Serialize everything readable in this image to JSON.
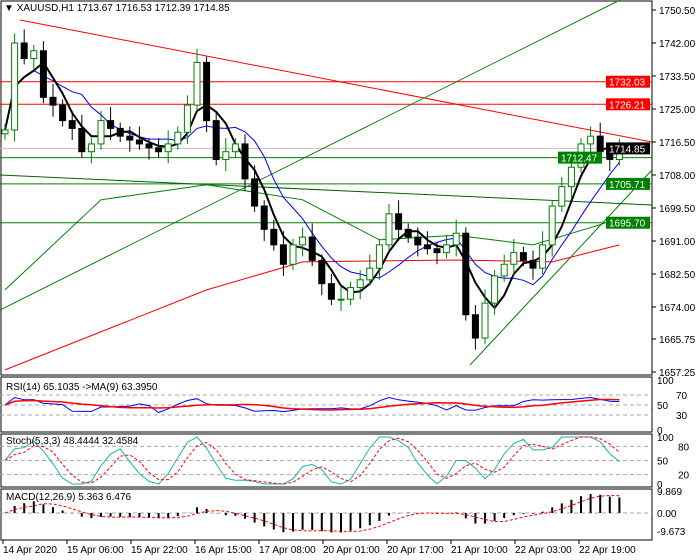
{
  "header": {
    "symbol": "XAUUSD,H1",
    "ohlc": "1713.67 1716.53 1712.39 1714.85"
  },
  "price_axis": {
    "ticks": [
      "1750.50",
      "1742.00",
      "1733.50",
      "1725.00",
      "1716.50",
      "1708.00",
      "1699.50",
      "1691.00",
      "1682.50",
      "1674.00",
      "1665.75",
      "1657.25"
    ],
    "min": 1657.25,
    "max": 1750.5
  },
  "price_labels": [
    {
      "text": "1732.03",
      "value": 1732.03,
      "color": "#ff0000"
    },
    {
      "text": "1726.21",
      "value": 1726.21,
      "color": "#ff0000"
    },
    {
      "text": "1714.85",
      "value": 1714.85,
      "color": "#000000"
    },
    {
      "text": "1712.47",
      "value": 1712.47,
      "color": "#008000"
    },
    {
      "text": "1705.71",
      "value": 1705.71,
      "color": "#008000"
    },
    {
      "text": "1695.70",
      "value": 1695.7,
      "color": "#008000"
    }
  ],
  "closes": [
    1719.6,
    1742,
    1738,
    1740,
    1728,
    1726,
    1722,
    1720,
    1714,
    1716,
    1722,
    1720,
    1718,
    1717,
    1716,
    1715,
    1714,
    1716,
    1719,
    1726,
    1737,
    1722,
    1712,
    1714,
    1716,
    1707,
    1700,
    1694,
    1690,
    1685,
    1690,
    1692,
    1686,
    1680,
    1676,
    1676,
    1679,
    1681,
    1684,
    1690,
    1698,
    1694,
    1692,
    1690,
    1689,
    1688,
    1690,
    1693,
    1672,
    1666,
    1675,
    1682,
    1685,
    1688,
    1686,
    1684,
    1690,
    1700,
    1705,
    1710,
    1716,
    1718,
    1714,
    1712,
    1714.85
  ],
  "ma_green": [
    [
      0,
      1678.4
    ],
    [
      10,
      1701.6
    ],
    [
      21,
      1705.5
    ],
    [
      31,
      1701.6
    ],
    [
      39,
      1691.3
    ],
    [
      47,
      1692.5
    ],
    [
      55,
      1690
    ],
    [
      62,
      1695.2
    ],
    [
      64,
      1697
    ]
  ],
  "ma_red": [
    [
      0,
      1657.8
    ],
    [
      21,
      1678.4
    ],
    [
      31,
      1685.6
    ],
    [
      47,
      1686.1
    ],
    [
      57,
      1685.6
    ],
    [
      64,
      1690
    ]
  ],
  "colors": {
    "bull": "#008000",
    "bear": "#000000",
    "rsi": "#0000ff",
    "rsi_ma": "#ff0000",
    "stoch_main": "#20b2aa",
    "stoch_signal": "#ff0000",
    "macd_signal": "#ff0000"
  },
  "rsi": {
    "label": "RSI(14) 65.1035  ->MA(9) 63.3950",
    "ticks": [
      "100",
      "70",
      "50",
      "30",
      "0"
    ]
  },
  "stoch": {
    "label": "Stoch(5,3,3) 48.4444 32.4584",
    "ticks": [
      "100",
      "80",
      "50",
      "20",
      "0"
    ]
  },
  "macd": {
    "label": "MACD(12,26,9) 5.363 6.476",
    "ticks": [
      "9.869",
      "0.00",
      "-9.673"
    ]
  },
  "time_axis": [
    "14 Apr 2020",
    "15 Apr 06:00",
    "15 Apr 22:00",
    "16 Apr 15:00",
    "17 Apr 08:00",
    "20 Apr 01:00",
    "20 Apr 17:00",
    "21 Apr 10:00",
    "22 Apr 03:00",
    "22 Apr 19:00"
  ]
}
